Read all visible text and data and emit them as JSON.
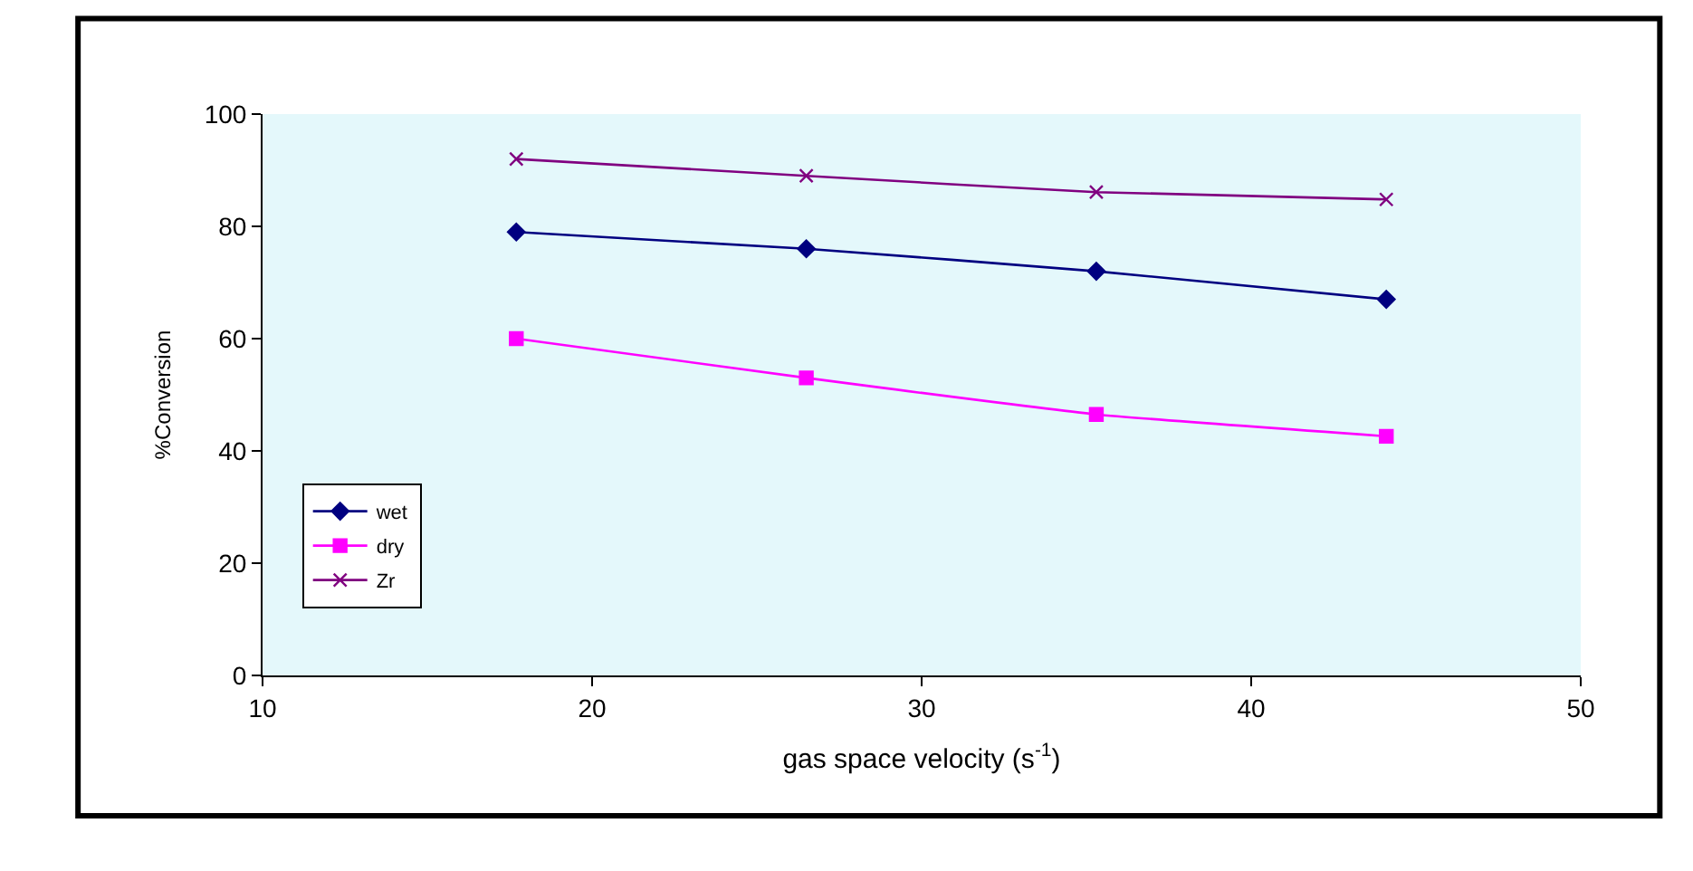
{
  "chart_data": {
    "type": "line",
    "xlabel": "gas space velocity (s$^{-1}$)",
    "ylabel": "%Conversion",
    "x": [
      17.7,
      26.5,
      35.3,
      44.1
    ],
    "series": [
      {
        "name": "wet",
        "color": "#000080",
        "marker": "diamond",
        "values": [
          79,
          76,
          72,
          67
        ]
      },
      {
        "name": "dry",
        "color": "#ff00ff",
        "marker": "square",
        "values": [
          60,
          53,
          46.5,
          42.6
        ]
      },
      {
        "name": "Zr",
        "color": "#800080",
        "marker": "cross",
        "values": [
          92,
          89,
          86.1,
          84.8
        ]
      }
    ],
    "xlim": [
      10,
      50
    ],
    "xticks": [
      10,
      20,
      30,
      40,
      50
    ],
    "ylim": [
      0,
      100
    ],
    "yticks": [
      0,
      20,
      40,
      60,
      80,
      100
    ],
    "grid": false,
    "legend": "bottom left",
    "line_style": "solid"
  }
}
